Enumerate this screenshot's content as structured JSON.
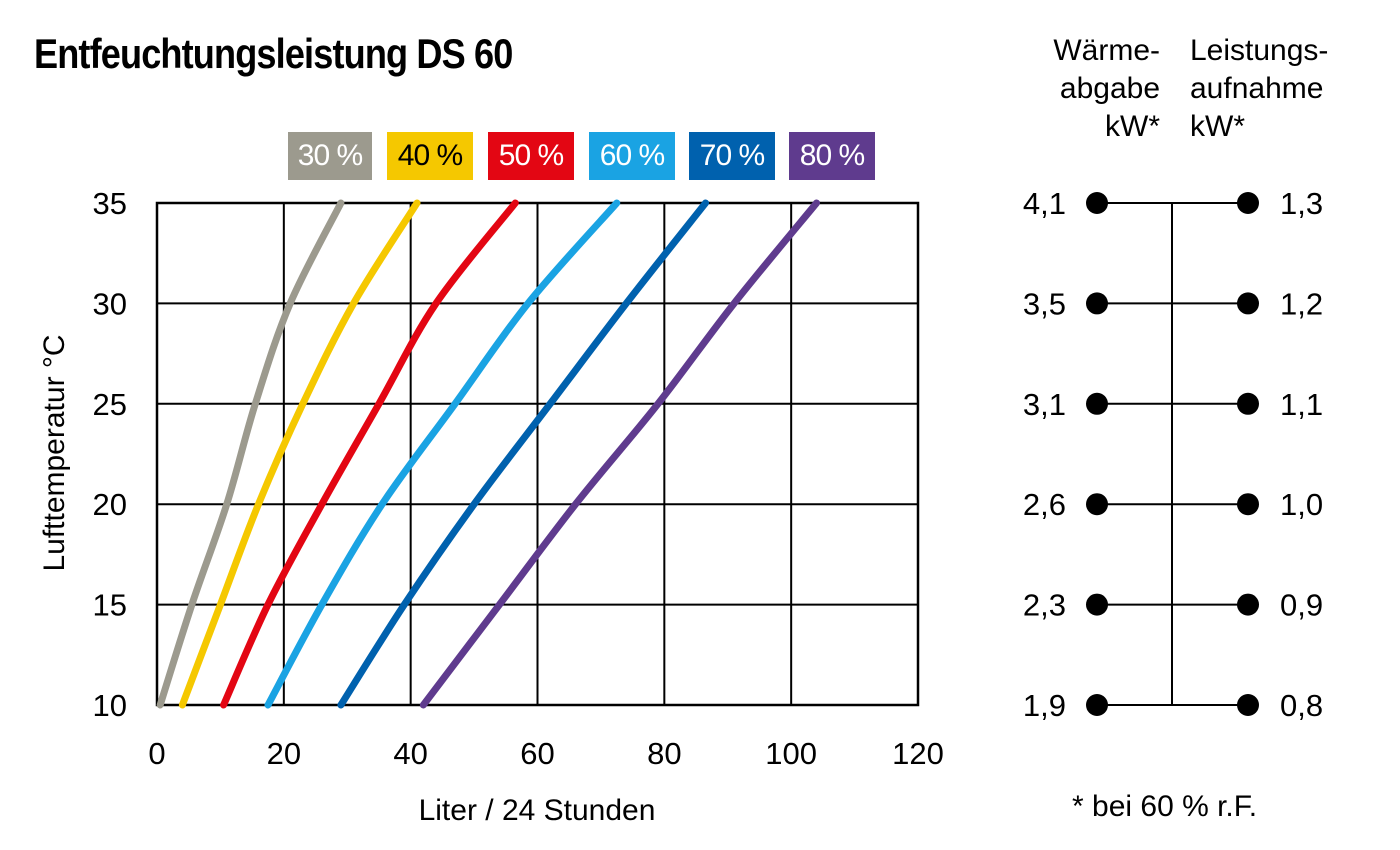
{
  "title": "Entfeuchtungsleistung DS 60",
  "chart_data": {
    "type": "line",
    "title": "Entfeuchtungsleistung DS 60",
    "xlabel": "Liter / 24 Stunden",
    "ylabel": "Lufttemperatur °C",
    "xlim": [
      0,
      120
    ],
    "ylim": [
      10,
      35
    ],
    "x_ticks": [
      0,
      20,
      40,
      60,
      80,
      100,
      120
    ],
    "y_ticks": [
      10,
      15,
      20,
      25,
      30,
      35
    ],
    "grid": true,
    "legend_position": "top",
    "series": [
      {
        "name": "30 %",
        "color": "#9c9a8e",
        "points": [
          [
            0.5,
            10
          ],
          [
            5.5,
            15
          ],
          [
            11,
            20
          ],
          [
            15.5,
            25
          ],
          [
            21,
            30
          ],
          [
            29,
            35
          ]
        ]
      },
      {
        "name": "40 %",
        "color": "#f5c800",
        "points": [
          [
            4,
            10
          ],
          [
            10,
            15
          ],
          [
            16,
            20
          ],
          [
            23,
            25
          ],
          [
            31,
            30
          ],
          [
            41,
            35
          ]
        ]
      },
      {
        "name": "50 %",
        "color": "#e30613",
        "points": [
          [
            10.5,
            10
          ],
          [
            17.5,
            15
          ],
          [
            26,
            20
          ],
          [
            35,
            25
          ],
          [
            44,
            30
          ],
          [
            56.5,
            35
          ]
        ]
      },
      {
        "name": "60 %",
        "color": "#1aa3e3",
        "points": [
          [
            17.5,
            10
          ],
          [
            26,
            15
          ],
          [
            35.5,
            20
          ],
          [
            47,
            25
          ],
          [
            58.5,
            30
          ],
          [
            72.5,
            35
          ]
        ]
      },
      {
        "name": "70 %",
        "color": "#0061ae",
        "points": [
          [
            29,
            10
          ],
          [
            39,
            15
          ],
          [
            50,
            20
          ],
          [
            62,
            25
          ],
          [
            74,
            30
          ],
          [
            86.5,
            35
          ]
        ]
      },
      {
        "name": "80 %",
        "color": "#5f3b8e",
        "points": [
          [
            42,
            10
          ],
          [
            54,
            15
          ],
          [
            66,
            20
          ],
          [
            79,
            25
          ],
          [
            91,
            30
          ],
          [
            104,
            35
          ]
        ]
      }
    ]
  },
  "side_panel": {
    "heat_header": "Wärme-\nabgabe\nkW*",
    "power_header": "Leistungs-\naufnahme\nkW*",
    "rows": [
      {
        "temp": 35,
        "heat": "4,1",
        "power": "1,3"
      },
      {
        "temp": 30,
        "heat": "3,5",
        "power": "1,2"
      },
      {
        "temp": 25,
        "heat": "3,1",
        "power": "1,1"
      },
      {
        "temp": 20,
        "heat": "2,6",
        "power": "1,0"
      },
      {
        "temp": 15,
        "heat": "2,3",
        "power": "0,9"
      },
      {
        "temp": 10,
        "heat": "1,9",
        "power": "0,8"
      }
    ],
    "footnote": "* bei 60 % r.F."
  }
}
